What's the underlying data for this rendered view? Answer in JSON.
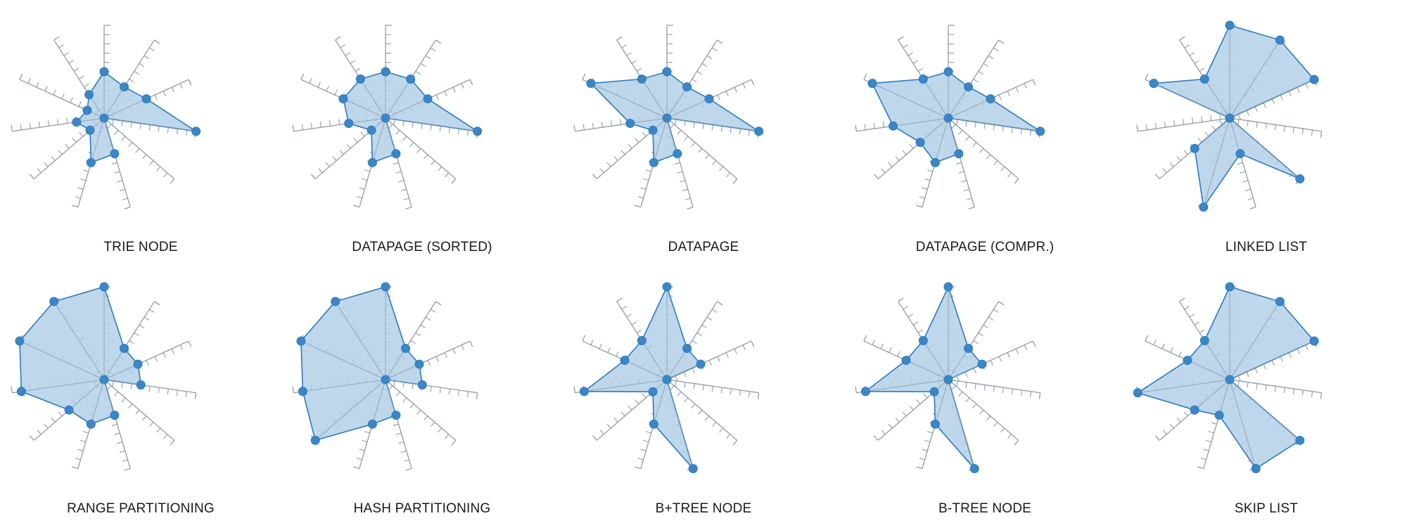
{
  "colors": {
    "axis": "#8f9aa8",
    "fill": "#b3d0e8",
    "stroke": "#2c7bbd",
    "marker": "#3a86c6",
    "text": "#1a1a1a"
  },
  "chart_data": [
    {
      "type": "radar",
      "title": "TRIE NODE",
      "ticks": 10,
      "max": 10,
      "values": [
        5,
        4,
        5,
        10,
        0,
        4,
        5,
        2,
        3,
        2,
        3
      ]
    },
    {
      "type": "radar",
      "title": "DATAPAGE (SORTED)",
      "ticks": 10,
      "max": 10,
      "values": [
        5,
        5,
        5,
        10,
        0,
        4,
        5,
        2,
        4,
        5,
        5
      ]
    },
    {
      "type": "radar",
      "title": "DATAPAGE",
      "ticks": 10,
      "max": 10,
      "values": [
        5,
        4,
        5,
        10,
        0,
        4,
        5,
        2,
        4,
        9,
        5
      ]
    },
    {
      "type": "radar",
      "title": "DATAPAGE (COMPR.)",
      "ticks": 10,
      "max": 10,
      "values": [
        5,
        4,
        5,
        10,
        0,
        4,
        5,
        4,
        6,
        9,
        5
      ]
    },
    {
      "type": "radar",
      "title": "LINKED LIST",
      "ticks": 10,
      "max": 10,
      "values": [
        10,
        10,
        10,
        0,
        10,
        4,
        10,
        5,
        0,
        9,
        5
      ]
    },
    {
      "type": "radar",
      "title": "RANGE PARTITIONING",
      "ticks": 10,
      "max": 10,
      "values": [
        10,
        4,
        4,
        4,
        0,
        4,
        5,
        5,
        9,
        10,
        10
      ]
    },
    {
      "type": "radar",
      "title": "HASH PARTITIONING",
      "ticks": 10,
      "max": 10,
      "values": [
        10,
        4,
        4,
        4,
        0,
        4,
        5,
        10,
        9,
        10,
        10
      ]
    },
    {
      "type": "radar",
      "title": "B+TREE NODE",
      "ticks": 10,
      "max": 10,
      "values": [
        10,
        4,
        4,
        0,
        0,
        10,
        5,
        2,
        9,
        5,
        5
      ]
    },
    {
      "type": "radar",
      "title": "B-TREE NODE",
      "ticks": 10,
      "max": 10,
      "values": [
        10,
        4,
        4,
        0,
        0,
        10,
        5,
        2,
        9,
        5,
        5
      ]
    },
    {
      "type": "radar",
      "title": "SKIP LIST",
      "ticks": 10,
      "max": 10,
      "values": [
        10,
        10,
        10,
        0,
        10,
        10,
        4,
        5,
        10,
        5,
        5
      ]
    }
  ]
}
